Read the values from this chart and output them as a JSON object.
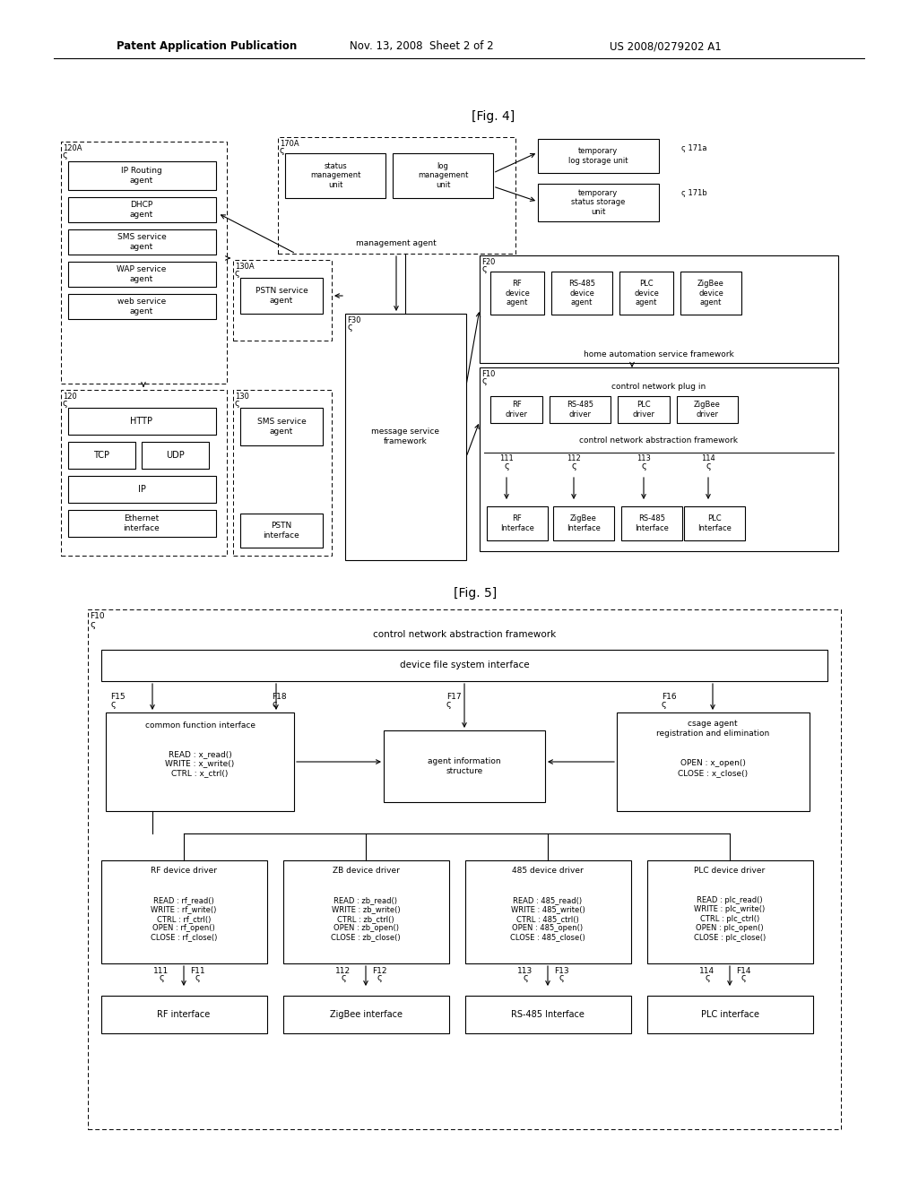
{
  "bg_color": "#ffffff",
  "header_left": "Patent Application Publication",
  "header_mid": "Nov. 13, 2008  Sheet 2 of 2",
  "header_right": "US 2008/0279202 A1",
  "fig4_label": "[Fig. 4]",
  "fig5_label": "[Fig. 5]"
}
